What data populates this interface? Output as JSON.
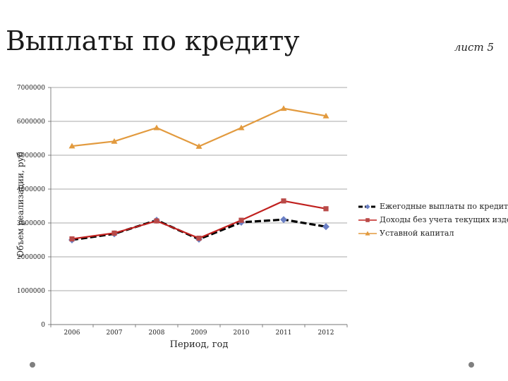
{
  "slide": {
    "title": "Выплаты по кредиту",
    "sheet_label": "лист 5"
  },
  "chart_data": {
    "type": "line",
    "x": [
      2006,
      2007,
      2008,
      2009,
      2010,
      2011,
      2012
    ],
    "categories": [
      "2006",
      "2007",
      "2008",
      "2009",
      "2010",
      "2011",
      "2012"
    ],
    "series": [
      {
        "name": "Ежегодные выплаты по кредиту",
        "values": [
          2500000,
          2680000,
          3080000,
          2520000,
          3020000,
          3100000,
          2890000
        ],
        "color": "#000000",
        "marker": "diamond",
        "marker_color": "#6a7fc4",
        "dashed": true
      },
      {
        "name": "Доходы без учета текущих издержек",
        "values": [
          2530000,
          2700000,
          3060000,
          2550000,
          3080000,
          3650000,
          3420000
        ],
        "color": "#c0201e",
        "marker": "square",
        "marker_color": "#b94a48",
        "dashed": false
      },
      {
        "name": "Уставной капитал",
        "values": [
          5270000,
          5410000,
          5810000,
          5260000,
          5810000,
          6380000,
          6160000
        ],
        "color": "#e29a3e",
        "marker": "triangle",
        "marker_color": "#e29a3e",
        "dashed": false
      }
    ],
    "title": "",
    "xlabel": "Период, год",
    "ylabel": "Объем реализации, руб",
    "ylim": [
      0,
      7000000
    ],
    "yticks": [
      0,
      1000000,
      2000000,
      3000000,
      4000000,
      5000000,
      6000000,
      7000000
    ],
    "ytick_labels": [
      "0",
      "1000000",
      "2000000",
      "3000000",
      "4000000",
      "5000000",
      "6000000",
      "7000000"
    ],
    "grid": true,
    "legend_position": "right"
  }
}
